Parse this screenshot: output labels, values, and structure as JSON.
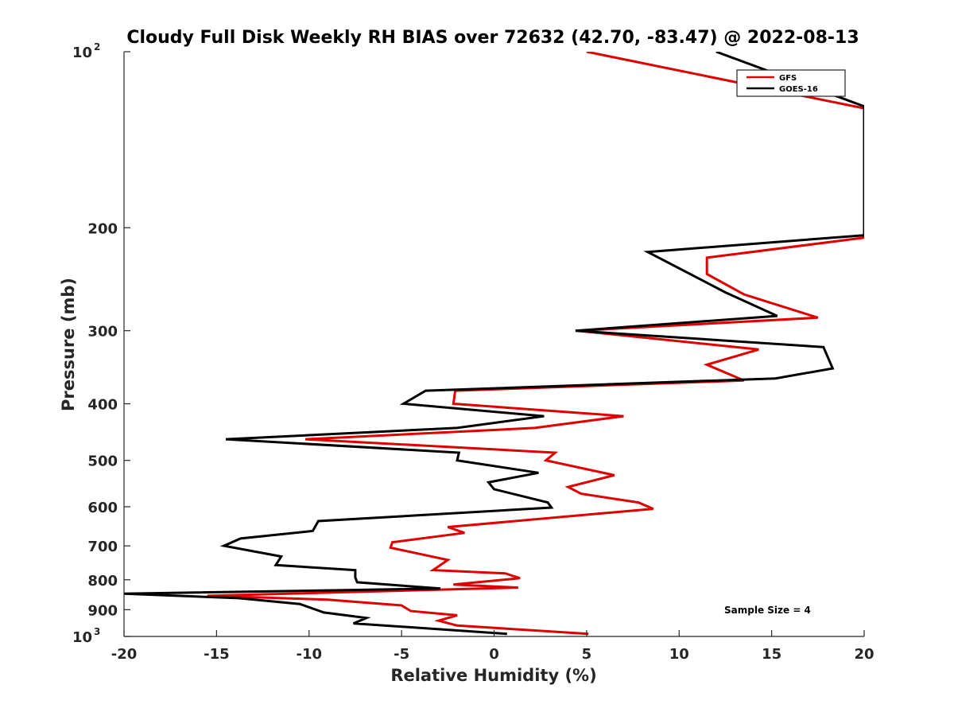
{
  "chart_data": {
    "type": "line",
    "title": "Cloudy Full Disk Weekly RH BIAS over 72632 (42.70, -83.47) @ 2022-08-13",
    "xlabel": "Relative Humidity (%)",
    "ylabel": "Pressure (mb)",
    "xlim": [
      -20,
      20
    ],
    "ylim": [
      100,
      1000
    ],
    "y_scale": "log",
    "y_reversed": true,
    "grid": false,
    "legend_position": "top-right",
    "annotation": "Sample Size = 4",
    "x_ticks": [
      {
        "value": -20,
        "label": "-20"
      },
      {
        "value": -15,
        "label": "-15"
      },
      {
        "value": -10,
        "label": "-10"
      },
      {
        "value": -5,
        "label": "-5"
      },
      {
        "value": 0,
        "label": "0"
      },
      {
        "value": 5,
        "label": "5"
      },
      {
        "value": 10,
        "label": "10"
      },
      {
        "value": 15,
        "label": "15"
      },
      {
        "value": 20,
        "label": "20"
      }
    ],
    "y_ticks": [
      {
        "value": 100,
        "label": "10",
        "exponent": "2"
      },
      {
        "value": 200,
        "label": "200"
      },
      {
        "value": 300,
        "label": "300"
      },
      {
        "value": 400,
        "label": "400"
      },
      {
        "value": 500,
        "label": "500"
      },
      {
        "value": 600,
        "label": "600"
      },
      {
        "value": 700,
        "label": "700"
      },
      {
        "value": 800,
        "label": "800"
      },
      {
        "value": 900,
        "label": "900"
      },
      {
        "value": 1000,
        "label": "10",
        "exponent": "3"
      }
    ],
    "series": [
      {
        "name": "GFS",
        "color": "#e00000",
        "points": [
          [
            5.0,
            100
          ],
          [
            20,
            125
          ],
          [
            20,
            208
          ],
          [
            11.5,
            225
          ],
          [
            11.5,
            240
          ],
          [
            13.5,
            260
          ],
          [
            17.5,
            285
          ],
          [
            4.5,
            300
          ],
          [
            14.3,
            323
          ],
          [
            11.5,
            343
          ],
          [
            13.5,
            365
          ],
          [
            -2.1,
            380
          ],
          [
            -2.2,
            400
          ],
          [
            7.0,
            420
          ],
          [
            2.2,
            440
          ],
          [
            -10.2,
            460
          ],
          [
            3.3,
            485
          ],
          [
            2.8,
            500
          ],
          [
            6.5,
            530
          ],
          [
            4.0,
            555
          ],
          [
            4.7,
            570
          ],
          [
            7.8,
            590
          ],
          [
            8.6,
            605
          ],
          [
            -2.5,
            650
          ],
          [
            -1.6,
            665
          ],
          [
            -5.5,
            690
          ],
          [
            -5.6,
            705
          ],
          [
            -2.5,
            740
          ],
          [
            -3.3,
            770
          ],
          [
            0.6,
            780
          ],
          [
            1.4,
            795
          ],
          [
            -2.2,
            815
          ],
          [
            1.3,
            825
          ],
          [
            -15.5,
            852
          ],
          [
            -9,
            865
          ],
          [
            -5,
            885
          ],
          [
            -4.5,
            905
          ],
          [
            -2,
            920
          ],
          [
            -3,
            940
          ],
          [
            -2,
            958
          ],
          [
            5.1,
            990
          ]
        ]
      },
      {
        "name": "GOES-16",
        "color": "#000000",
        "points": [
          [
            12.0,
            100
          ],
          [
            20,
            124
          ],
          [
            20,
            206
          ],
          [
            8.3,
            220
          ],
          [
            12.5,
            258
          ],
          [
            15.3,
            283
          ],
          [
            4.4,
            300
          ],
          [
            17.8,
            320
          ],
          [
            18.3,
            348
          ],
          [
            15.2,
            362
          ],
          [
            -3.7,
            380
          ],
          [
            -4.9,
            400
          ],
          [
            2.7,
            420
          ],
          [
            -2.0,
            440
          ],
          [
            -14.5,
            460
          ],
          [
            -1.9,
            485
          ],
          [
            -2.0,
            500
          ],
          [
            2.4,
            525
          ],
          [
            -0.3,
            545
          ],
          [
            0.0,
            560
          ],
          [
            2.9,
            590
          ],
          [
            3.1,
            602
          ],
          [
            -9.5,
            635
          ],
          [
            -9.8,
            660
          ],
          [
            -13.7,
            680
          ],
          [
            -14.6,
            700
          ],
          [
            -11.5,
            730
          ],
          [
            -11.8,
            755
          ],
          [
            -7.5,
            770
          ],
          [
            -7.5,
            793
          ],
          [
            -7.4,
            808
          ],
          [
            -2.9,
            828
          ],
          [
            -20,
            845
          ],
          [
            -13.8,
            860
          ],
          [
            -10.5,
            880
          ],
          [
            -9.2,
            910
          ],
          [
            -6.9,
            930
          ],
          [
            -7.6,
            950
          ],
          [
            0.7,
            990
          ]
        ]
      }
    ]
  }
}
